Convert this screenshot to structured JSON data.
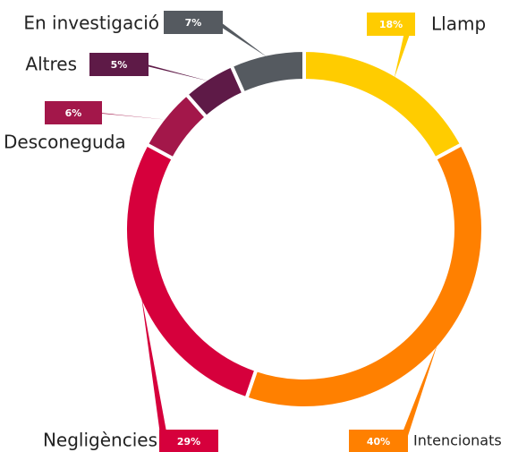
{
  "chart_data": {
    "type": "donut",
    "categories": [
      "Llamp",
      "Intencionats",
      "Negligències",
      "Desconeguda",
      "Altres",
      "En investigació"
    ],
    "values": [
      18,
      40,
      29,
      6,
      5,
      7
    ],
    "value_labels": [
      "18%",
      "40%",
      "29%",
      "6%",
      "5%",
      "7%"
    ],
    "colors": [
      "#ffcc00",
      "#ff8000",
      "#d6003c",
      "#a3174a",
      "#5e1a47",
      "#555a60"
    ]
  }
}
